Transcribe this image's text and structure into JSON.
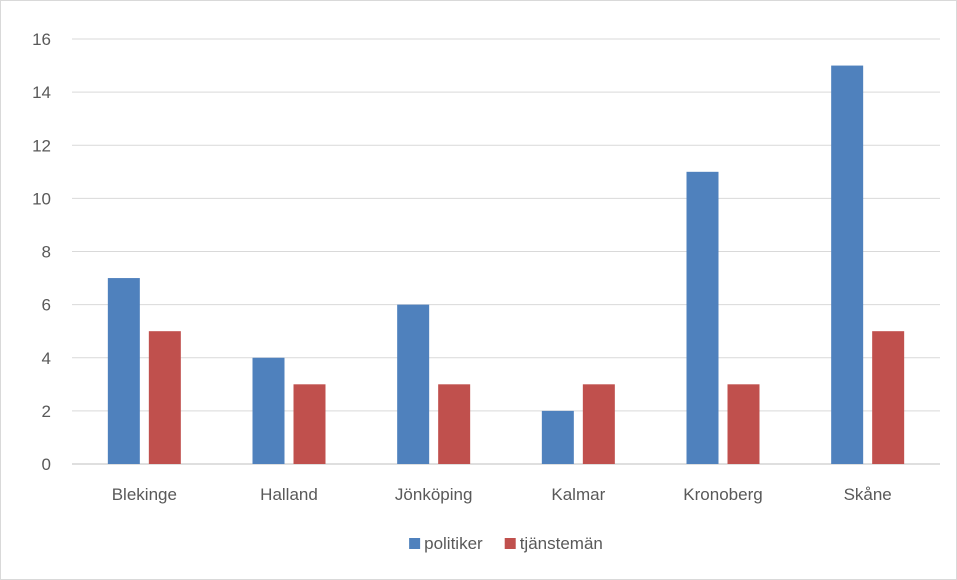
{
  "chart_data": {
    "type": "bar",
    "categories": [
      "Blekinge",
      "Halland",
      "Jönköping",
      "Kalmar",
      "Kronoberg",
      "Skåne"
    ],
    "series": [
      {
        "name": "politiker",
        "values": [
          7,
          4,
          6,
          2,
          11,
          15
        ],
        "color": "#4f81bd"
      },
      {
        "name": "tjänstemän",
        "values": [
          5,
          3,
          3,
          3,
          3,
          5
        ],
        "color": "#c0504d"
      }
    ],
    "ylim": [
      0,
      16
    ],
    "yticks": [
      0,
      2,
      4,
      6,
      8,
      10,
      12,
      14,
      16
    ],
    "grid": true,
    "legend": "bottom",
    "colors": {
      "gridline": "#d9d9d9",
      "axis": "#bfbfbf",
      "text": "#595959"
    }
  }
}
